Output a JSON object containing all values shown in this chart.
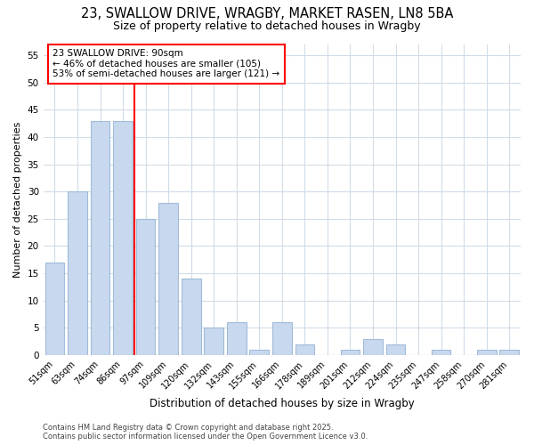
{
  "title_line1": "23, SWALLOW DRIVE, WRAGBY, MARKET RASEN, LN8 5BA",
  "title_line2": "Size of property relative to detached houses in Wragby",
  "xlabel": "Distribution of detached houses by size in Wragby",
  "ylabel": "Number of detached properties",
  "categories": [
    "51sqm",
    "63sqm",
    "74sqm",
    "86sqm",
    "97sqm",
    "109sqm",
    "120sqm",
    "132sqm",
    "143sqm",
    "155sqm",
    "166sqm",
    "178sqm",
    "189sqm",
    "201sqm",
    "212sqm",
    "224sqm",
    "235sqm",
    "247sqm",
    "258sqm",
    "270sqm",
    "281sqm"
  ],
  "values": [
    17,
    30,
    43,
    43,
    25,
    28,
    14,
    5,
    6,
    1,
    6,
    2,
    0,
    1,
    3,
    2,
    0,
    1,
    0,
    1,
    1
  ],
  "bar_color": "#c8d8ee",
  "bar_edge_color": "#a0bcd8",
  "vline_x": 3.5,
  "annotation_text": "23 SWALLOW DRIVE: 90sqm\n← 46% of detached houses are smaller (105)\n53% of semi-detached houses are larger (121) →",
  "annotation_box_color": "white",
  "annotation_box_edge_color": "red",
  "ylim": [
    0,
    57
  ],
  "yticks": [
    0,
    5,
    10,
    15,
    20,
    25,
    30,
    35,
    40,
    45,
    50,
    55
  ],
  "footer_line1": "Contains HM Land Registry data © Crown copyright and database right 2025.",
  "footer_line2": "Contains public sector information licensed under the Open Government Licence v3.0.",
  "bg_color": "#ffffff",
  "grid_color": "#d0dce8",
  "title_fontsize": 10.5,
  "subtitle_fontsize": 9,
  "tick_fontsize": 7,
  "ylabel_fontsize": 8,
  "xlabel_fontsize": 8.5,
  "annot_fontsize": 7.5,
  "footer_fontsize": 6
}
